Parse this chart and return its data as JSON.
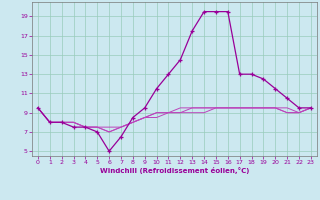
{
  "xlabel": "Windchill (Refroidissement éolien,°C)",
  "bg_color": "#cce8f0",
  "grid_color": "#99ccbb",
  "line_color": "#990099",
  "line_color2": "#bb44bb",
  "xlim": [
    -0.5,
    23.5
  ],
  "ylim": [
    4.5,
    20.5
  ],
  "yticks": [
    5,
    7,
    9,
    11,
    13,
    15,
    17,
    19
  ],
  "xticks": [
    0,
    1,
    2,
    3,
    4,
    5,
    6,
    7,
    8,
    9,
    10,
    11,
    12,
    13,
    14,
    15,
    16,
    17,
    18,
    19,
    20,
    21,
    22,
    23
  ],
  "series_main": [
    9.5,
    8.0,
    8.0,
    7.5,
    7.5,
    7.0,
    5.0,
    6.5,
    8.5,
    9.5,
    11.5,
    13.0,
    14.5,
    17.5,
    19.5,
    19.5,
    19.5,
    13.0,
    13.0,
    12.5,
    11.5,
    10.5,
    9.5,
    9.5
  ],
  "series_flat1": [
    9.5,
    8.0,
    8.0,
    8.0,
    7.5,
    7.5,
    7.0,
    7.5,
    8.0,
    8.5,
    9.0,
    9.0,
    9.5,
    9.5,
    9.5,
    9.5,
    9.5,
    9.5,
    9.5,
    9.5,
    9.5,
    9.5,
    9.0,
    9.5
  ],
  "series_flat2": [
    9.5,
    8.0,
    8.0,
    8.0,
    7.5,
    7.5,
    7.0,
    7.5,
    8.0,
    8.5,
    9.0,
    9.0,
    9.0,
    9.5,
    9.5,
    9.5,
    9.5,
    9.5,
    9.5,
    9.5,
    9.5,
    9.0,
    9.0,
    9.5
  ],
  "series_flat3": [
    9.5,
    8.0,
    8.0,
    8.0,
    7.5,
    7.5,
    7.5,
    7.5,
    8.0,
    8.5,
    8.5,
    9.0,
    9.0,
    9.0,
    9.0,
    9.5,
    9.5,
    9.5,
    9.5,
    9.5,
    9.5,
    9.0,
    9.0,
    9.5
  ]
}
